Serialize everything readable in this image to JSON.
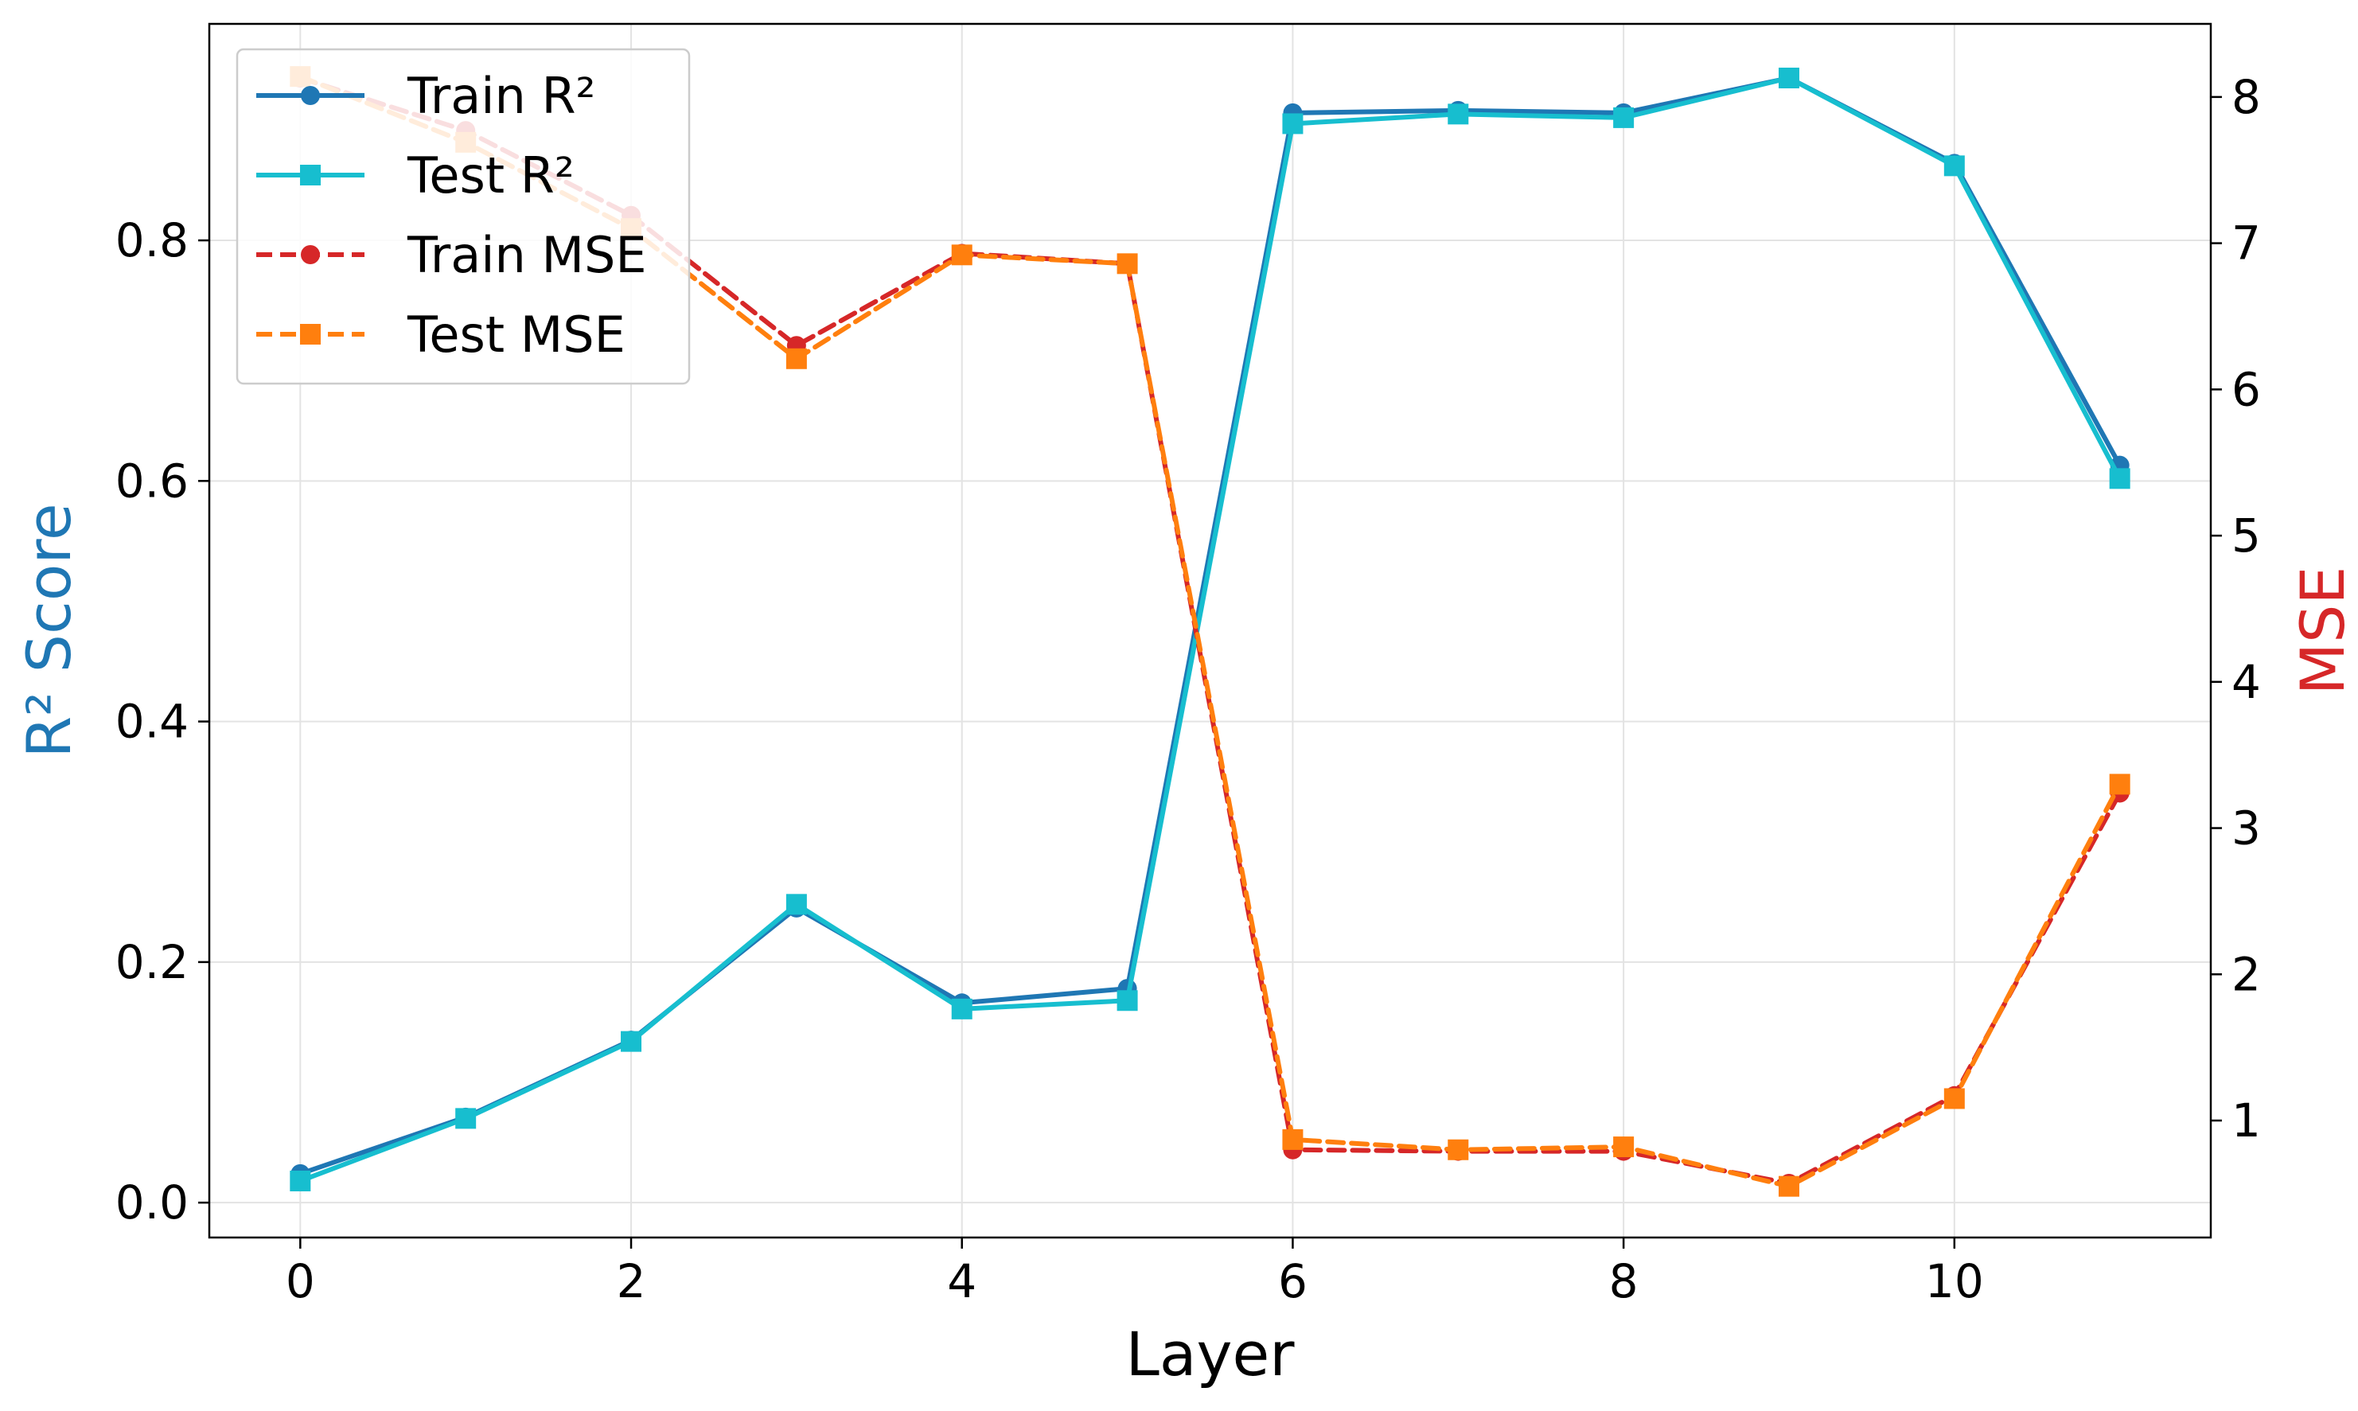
{
  "chart_data": {
    "type": "line",
    "title": "",
    "xlabel": "Layer",
    "ylabel_left": "R² Score",
    "ylabel_right": "MSE",
    "ylabel_left_color": "#1f77b4",
    "ylabel_right_color": "#d62728",
    "x": [
      0,
      1,
      2,
      3,
      4,
      5,
      6,
      7,
      8,
      9,
      10,
      11
    ],
    "xlim": [
      -0.55,
      11.55
    ],
    "ylim_left": [
      -0.029,
      0.98
    ],
    "ylim_right": [
      0.2,
      8.5
    ],
    "xticks": [
      0,
      2,
      4,
      6,
      8,
      10
    ],
    "yticks_left": [
      0.0,
      0.2,
      0.4,
      0.6,
      0.8
    ],
    "yticks_right": [
      1,
      2,
      3,
      4,
      5,
      6,
      7,
      8
    ],
    "grid": true,
    "legend_position": "top-left",
    "series": [
      {
        "name": "Train R²",
        "axis": "left",
        "color": "#1f77b4",
        "marker": "circle",
        "dash": "solid",
        "values": [
          0.024,
          0.071,
          0.135,
          0.245,
          0.166,
          0.178,
          0.906,
          0.908,
          0.906,
          0.935,
          0.864,
          0.613
        ]
      },
      {
        "name": "Test R²",
        "axis": "left",
        "color": "#17becf",
        "marker": "square",
        "dash": "solid",
        "values": [
          0.018,
          0.07,
          0.134,
          0.248,
          0.161,
          0.168,
          0.897,
          0.905,
          0.902,
          0.935,
          0.862,
          0.602
        ]
      },
      {
        "name": "Train MSE",
        "axis": "right",
        "color": "#d62728",
        "marker": "circle",
        "dash": "dashed",
        "values": [
          8.13,
          7.77,
          7.19,
          6.3,
          6.93,
          6.86,
          0.8,
          0.79,
          0.79,
          0.57,
          1.17,
          3.24
        ]
      },
      {
        "name": "Test MSE",
        "axis": "right",
        "color": "#ff7f0e",
        "marker": "square",
        "dash": "dashed",
        "values": [
          8.14,
          7.69,
          7.1,
          6.21,
          6.92,
          6.86,
          0.87,
          0.8,
          0.82,
          0.55,
          1.15,
          3.3
        ]
      }
    ]
  }
}
